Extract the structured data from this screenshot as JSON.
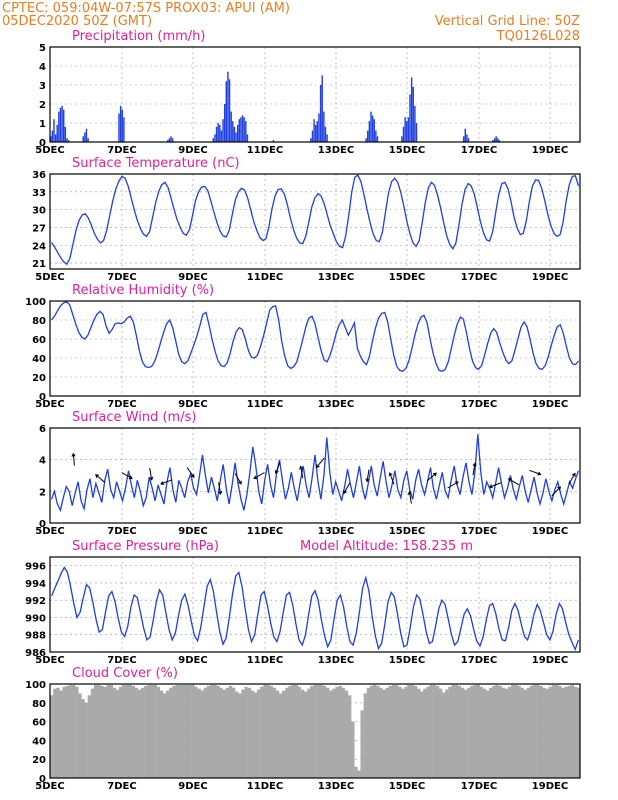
{
  "header": {
    "left_line1": "CPTEC:   059:04W-07:57S   PROX03: APUI (AM)",
    "left_line2": "05DEC2020 50Z (GMT)",
    "right_line1": "Vertical Grid Line: 50Z",
    "right_line2": "TQ0126L028"
  },
  "x_ticks": [
    "5DEC",
    "7DEC",
    "9DEC",
    "11DEC",
    "13DEC",
    "15DEC",
    "17DEC",
    "19DEC"
  ],
  "chart_data": [
    {
      "id": "precip",
      "type": "bar",
      "title": "Precipitation  (mm/h)",
      "ylim": [
        0,
        5
      ],
      "yticks": [
        "0",
        "1",
        "2",
        "3",
        "4",
        "5"
      ],
      "values": [
        0.3,
        0.6,
        1.2,
        0.4,
        0.9,
        1.6,
        1.8,
        1.9,
        1.7,
        0.8,
        0.2,
        0.1,
        0,
        0,
        0,
        0,
        0,
        0,
        0,
        0,
        0.3,
        0.5,
        0.7,
        0.2,
        0,
        0,
        0,
        0,
        0,
        0,
        0,
        0,
        0,
        0,
        0,
        0,
        0,
        0,
        0,
        0,
        0,
        0,
        1.5,
        1.9,
        1.7,
        1.3,
        0,
        0,
        0,
        0,
        0,
        0,
        0,
        0,
        0,
        0,
        0,
        0,
        0,
        0,
        0,
        0,
        0,
        0,
        0,
        0,
        0,
        0,
        0,
        0,
        0,
        0,
        0.1,
        0.2,
        0.3,
        0.2,
        0,
        0,
        0,
        0,
        0,
        0,
        0,
        0,
        0,
        0,
        0,
        0,
        0,
        0,
        0,
        0,
        0,
        0,
        0,
        0,
        0,
        0,
        0,
        0,
        0.2,
        0.4,
        0.8,
        1.0,
        0.9,
        0.6,
        1.2,
        2.0,
        3.2,
        3.7,
        3.3,
        1.6,
        1.1,
        0.8,
        0.5,
        0.9,
        1.2,
        1.3,
        1.4,
        1.3,
        1.1,
        0.4,
        0,
        0,
        0,
        0,
        0,
        0,
        0,
        0,
        0,
        0,
        0,
        0,
        0,
        0,
        0,
        0.1,
        0,
        0,
        0,
        0,
        0,
        0,
        0,
        0,
        0,
        0,
        0,
        0,
        0,
        0,
        0,
        0,
        0,
        0,
        0,
        0,
        0,
        0,
        0.2,
        0.6,
        1.2,
        0.9,
        1.1,
        1.5,
        3.0,
        3.5,
        1.6,
        0.8,
        0.4,
        0,
        0,
        0,
        0,
        0,
        0,
        0,
        0,
        0,
        0,
        0,
        0,
        0,
        0,
        0,
        0,
        0,
        0,
        0,
        0,
        0,
        0,
        0,
        0.2,
        0.6,
        1.1,
        1.6,
        1.4,
        1.2,
        0.6,
        0.3,
        0,
        0,
        0,
        0,
        0,
        0,
        0,
        0,
        0,
        0,
        0,
        0,
        0,
        0,
        0.3,
        0.8,
        1.3,
        1.1,
        1.3,
        2.5,
        3.4,
        2.9,
        1.9,
        1.0,
        0,
        0,
        0,
        0,
        0,
        0,
        0,
        0,
        0,
        0,
        0,
        0,
        0,
        0,
        0,
        0,
        0,
        0,
        0,
        0,
        0,
        0,
        0,
        0,
        0,
        0,
        0,
        0,
        0.3,
        0.7,
        0.4,
        0.2,
        0,
        0,
        0,
        0,
        0,
        0,
        0,
        0,
        0,
        0,
        0,
        0,
        0,
        0,
        0.1,
        0.2,
        0.3,
        0.2,
        0.1,
        0,
        0,
        0,
        0,
        0,
        0,
        0,
        0,
        0,
        0,
        0,
        0,
        0,
        0,
        0,
        0,
        0,
        0,
        0,
        0,
        0,
        0,
        0,
        0,
        0,
        0,
        0,
        0,
        0,
        0,
        0,
        0,
        0,
        0,
        0,
        0,
        0,
        0,
        0,
        0,
        0,
        0,
        0,
        0,
        0,
        0,
        0,
        0,
        0
      ]
    },
    {
      "id": "temp",
      "type": "line",
      "title": "Surface Temperature  (nC)",
      "ylim": [
        20,
        36
      ],
      "yticks": [
        {
          "v": 21,
          "t": "21"
        },
        {
          "v": 24,
          "t": "24"
        },
        {
          "v": 27,
          "t": "27"
        },
        {
          "v": 30,
          "t": "30"
        },
        {
          "v": 33,
          "t": "33"
        },
        {
          "v": 36,
          "t": "36"
        }
      ],
      "values": [
        24.5,
        23.7,
        22.8,
        21.9,
        21.2,
        20.8,
        21.8,
        24.2,
        26.5,
        28.2,
        29.1,
        29.3,
        28.6,
        27.4,
        26.0,
        25.0,
        24.4,
        24.8,
        26.5,
        29.0,
        31.5,
        33.5,
        34.8,
        35.6,
        35.3,
        34.0,
        32.0,
        30.0,
        28.2,
        26.8,
        25.9,
        25.5,
        26.3,
        28.7,
        31.2,
        33.1,
        34.2,
        34.6,
        33.8,
        32.0,
        30.0,
        28.3,
        27.0,
        26.0,
        25.7,
        26.6,
        29.0,
        31.5,
        33.0,
        33.8,
        33.9,
        33.2,
        31.5,
        29.6,
        27.8,
        26.4,
        25.6,
        25.4,
        26.5,
        29.2,
        31.6,
        33.0,
        33.6,
        33.3,
        32.0,
        30.0,
        28.0,
        26.5,
        25.3,
        24.8,
        25.1,
        27.2,
        30.2,
        32.4,
        33.4,
        33.5,
        32.6,
        30.8,
        28.5,
        26.6,
        25.2,
        24.4,
        24.3,
        25.5,
        28.0,
        30.5,
        32.0,
        32.7,
        32.3,
        31.0,
        29.1,
        27.3,
        25.9,
        24.6,
        23.8,
        23.6,
        25.5,
        29.0,
        33.0,
        35.5,
        35.8,
        34.7,
        32.5,
        30.0,
        27.8,
        25.9,
        24.8,
        24.6,
        26.2,
        29.6,
        32.8,
        34.7,
        35.3,
        34.6,
        32.9,
        30.6,
        28.0,
        25.9,
        24.4,
        23.8,
        24.8,
        27.8,
        31.2,
        33.7,
        34.6,
        34.1,
        32.5,
        30.3,
        27.8,
        25.6,
        24.1,
        23.4,
        24.4,
        27.5,
        31.0,
        33.4,
        34.4,
        34.0,
        32.6,
        30.3,
        28.0,
        26.1,
        24.9,
        24.7,
        26.3,
        29.6,
        32.6,
        34.4,
        34.6,
        33.5,
        31.3,
        28.7,
        26.9,
        25.8,
        26.0,
        28.2,
        31.5,
        34.0,
        35.0,
        34.9,
        33.6,
        31.5,
        29.2,
        27.3,
        26.0,
        25.5,
        25.8,
        28.0,
        31.5,
        34.2,
        35.6,
        35.7,
        34.0
      ]
    },
    {
      "id": "rh",
      "type": "line",
      "title": "Relative Humidity  (%)",
      "ylim": [
        0,
        100
      ],
      "yticks": [
        {
          "v": 0,
          "t": "0"
        },
        {
          "v": 20,
          "t": "20"
        },
        {
          "v": 40,
          "t": "40"
        },
        {
          "v": 60,
          "t": "60"
        },
        {
          "v": 80,
          "t": "80"
        },
        {
          "v": 100,
          "t": "100"
        }
      ],
      "values": [
        80,
        84,
        90,
        95,
        98,
        99,
        96,
        86,
        76,
        67,
        62,
        60,
        64,
        72,
        80,
        86,
        89,
        86,
        74,
        66,
        70,
        76,
        77,
        76,
        78,
        82,
        84,
        78,
        64,
        48,
        36,
        31,
        30,
        31,
        36,
        45,
        56,
        67,
        76,
        80,
        72,
        58,
        44,
        36,
        34,
        37,
        45,
        54,
        63,
        74,
        86,
        88,
        75,
        60,
        47,
        37,
        32,
        31,
        35,
        45,
        58,
        68,
        72,
        70,
        60,
        48,
        41,
        40,
        43,
        52,
        63,
        76,
        90,
        94,
        95,
        80,
        58,
        42,
        32,
        29,
        31,
        36,
        48,
        60,
        73,
        82,
        84,
        76,
        62,
        48,
        38,
        36,
        43,
        54,
        66,
        75,
        80,
        72,
        64,
        70,
        77,
        50,
        42,
        36,
        33,
        42,
        58,
        72,
        82,
        87,
        88,
        78,
        60,
        43,
        31,
        27,
        26,
        29,
        37,
        50,
        64,
        76,
        83,
        85,
        77,
        60,
        45,
        34,
        27,
        26,
        28,
        36,
        50,
        64,
        76,
        83,
        81,
        67,
        50,
        37,
        30,
        28,
        32,
        43,
        55,
        66,
        71,
        67,
        56,
        46,
        38,
        34,
        37,
        48,
        60,
        72,
        78,
        73,
        60,
        45,
        34,
        29,
        28,
        32,
        41,
        53,
        64,
        73,
        75,
        66,
        52,
        40,
        34,
        33,
        37
      ]
    },
    {
      "id": "wind",
      "type": "line",
      "title": "Surface Wind  (m/s)",
      "ylim": [
        0,
        6
      ],
      "yticks": [
        {
          "v": 0,
          "t": "0"
        },
        {
          "v": 2,
          "t": "2"
        },
        {
          "v": 4,
          "t": "4"
        },
        {
          "v": 6,
          "t": "6"
        }
      ],
      "values": [
        1.5,
        2.0,
        1.2,
        0.8,
        1.6,
        2.3,
        2.0,
        1.1,
        1.9,
        2.6,
        1.4,
        0.9,
        2.1,
        2.8,
        1.6,
        2.5,
        1.9,
        1.3,
        2.7,
        3.4,
        2.1,
        1.6,
        2.6,
        2.0,
        1.4,
        2.2,
        3.3,
        2.4,
        1.6,
        2.7,
        2.0,
        1.1,
        1.6,
        2.9,
        2.2,
        1.4,
        2.4,
        1.8,
        1.2,
        2.6,
        3.5,
        2.1,
        1.3,
        2.7,
        2.2,
        1.6,
        2.6,
        3.1,
        2.2,
        1.8,
        3.0,
        4.3,
        3.0,
        1.9,
        2.9,
        2.2,
        1.4,
        2.7,
        3.7,
        2.2,
        1.2,
        2.4,
        3.8,
        2.5,
        1.5,
        0.8,
        1.8,
        3.2,
        4.8,
        3.6,
        2.0,
        1.2,
        2.7,
        3.7,
        2.4,
        1.6,
        3.1,
        4.0,
        2.7,
        1.5,
        2.2,
        3.2,
        2.2,
        1.4,
        2.6,
        3.6,
        2.4,
        1.6,
        2.8,
        4.3,
        2.6,
        1.5,
        3.0,
        5.4,
        3.2,
        1.8,
        2.6,
        2.0,
        1.4,
        2.3,
        3.4,
        2.4,
        1.6,
        2.6,
        3.6,
        2.2,
        1.5,
        2.5,
        3.6,
        2.4,
        1.7,
        2.8,
        3.9,
        2.6,
        1.6,
        2.4,
        3.3,
        2.1,
        1.6,
        2.7,
        3.3,
        2.1,
        1.5,
        2.7,
        3.4,
        2.4,
        1.8,
        2.6,
        3.5,
        2.2,
        1.5,
        2.4,
        3.2,
        2.0,
        1.6,
        2.7,
        3.6,
        2.4,
        1.8,
        2.9,
        3.8,
        2.6,
        1.8,
        3.2,
        5.6,
        3.2,
        1.8,
        2.6,
        2.2,
        1.6,
        2.5,
        3.5,
        2.5,
        1.6,
        2.2,
        3.0,
        2.1,
        1.5,
        2.3,
        3.0,
        2.0,
        1.3,
        2.1,
        2.9,
        1.9,
        1.2,
        1.9,
        2.8,
        2.0,
        1.4,
        2.1,
        2.6,
        1.8,
        1.2,
        1.9,
        2.6,
        2.2,
        2.8,
        3.3
      ]
    },
    {
      "id": "pres",
      "type": "line",
      "title": "Surface Pressure  (hPa)",
      "annotation": "Model Altitude: 158.235  m",
      "ylim": [
        986,
        997
      ],
      "yticks": [
        {
          "v": 986,
          "t": "986"
        },
        {
          "v": 988,
          "t": "988"
        },
        {
          "v": 990,
          "t": "990"
        },
        {
          "v": 992,
          "t": "992"
        },
        {
          "v": 994,
          "t": "994"
        },
        {
          "v": 996,
          "t": "996"
        }
      ],
      "values": [
        992.5,
        993.4,
        994.2,
        995.1,
        995.8,
        995.2,
        993.6,
        991.6,
        990.0,
        990.6,
        992.3,
        993.8,
        993.4,
        991.8,
        989.8,
        988.3,
        988.6,
        990.6,
        992.5,
        993.0,
        991.8,
        989.9,
        988.3,
        987.8,
        989.0,
        991.2,
        992.6,
        992.3,
        990.6,
        988.8,
        987.4,
        987.7,
        989.6,
        991.8,
        993.2,
        992.6,
        990.6,
        988.6,
        987.4,
        988.2,
        990.2,
        992.0,
        992.7,
        991.4,
        989.6,
        987.9,
        987.3,
        988.8,
        991.2,
        993.6,
        994.4,
        993.0,
        990.6,
        988.3,
        986.9,
        987.6,
        990.0,
        992.7,
        994.8,
        995.2,
        993.6,
        991.0,
        988.6,
        987.2,
        988.0,
        990.4,
        992.6,
        993.0,
        991.4,
        989.4,
        987.8,
        987.2,
        988.4,
        990.6,
        992.6,
        992.9,
        991.4,
        989.2,
        987.4,
        986.8,
        988.0,
        990.4,
        992.5,
        993.1,
        992.0,
        989.8,
        987.9,
        986.6,
        987.4,
        989.8,
        992.0,
        992.6,
        991.2,
        989.0,
        987.2,
        986.8,
        988.2,
        990.6,
        993.4,
        994.6,
        993.0,
        990.2,
        987.9,
        986.4,
        987.0,
        989.2,
        991.8,
        992.9,
        992.4,
        990.4,
        988.2,
        986.6,
        986.8,
        988.8,
        991.2,
        992.6,
        992.2,
        990.4,
        988.4,
        987.0,
        987.2,
        989.0,
        991.0,
        992.0,
        991.5,
        989.8,
        988.0,
        986.8,
        987.2,
        988.8,
        990.4,
        991.0,
        990.2,
        988.6,
        987.2,
        986.7,
        987.8,
        989.8,
        991.4,
        991.6,
        990.4,
        988.6,
        987.4,
        987.3,
        988.8,
        990.8,
        991.6,
        990.8,
        989.2,
        987.8,
        987.4,
        988.6,
        990.4,
        991.5,
        990.8,
        989.4,
        988.0,
        987.4,
        988.4,
        990.4,
        991.6,
        991.0,
        989.4,
        988.0,
        987.1,
        986.3,
        987.4
      ]
    },
    {
      "id": "cloud",
      "type": "area",
      "title": "Cloud Cover  (%)",
      "ylim": [
        0,
        100
      ],
      "yticks": [
        {
          "v": 0,
          "t": "0"
        },
        {
          "v": 20,
          "t": "20"
        },
        {
          "v": 40,
          "t": "40"
        },
        {
          "v": 60,
          "t": "60"
        },
        {
          "v": 80,
          "t": "80"
        },
        {
          "v": 100,
          "t": "100"
        }
      ],
      "values": [
        88,
        95,
        96,
        93,
        97,
        98,
        99,
        99,
        97,
        90,
        84,
        80,
        88,
        95,
        99,
        99,
        98,
        97,
        99,
        99,
        96,
        94,
        97,
        99,
        99,
        99,
        98,
        96,
        94,
        96,
        98,
        99,
        99,
        99,
        97,
        93,
        90,
        93,
        96,
        98,
        99,
        99,
        99,
        99,
        99,
        99,
        97,
        95,
        93,
        96,
        98,
        99,
        99,
        98,
        96,
        94,
        96,
        98,
        96,
        92,
        90,
        94,
        97,
        96,
        93,
        91,
        94,
        97,
        99,
        99,
        98,
        96,
        93,
        90,
        93,
        96,
        98,
        99,
        99,
        97,
        94,
        92,
        95,
        98,
        99,
        99,
        99,
        98,
        96,
        93,
        95,
        97,
        98,
        96,
        93,
        88,
        60,
        12,
        8,
        72,
        90,
        96,
        98,
        99,
        98,
        96,
        94,
        96,
        98,
        99,
        99,
        97,
        95,
        97,
        99,
        99,
        98,
        95,
        92,
        95,
        97,
        99,
        99,
        98,
        95,
        91,
        94,
        97,
        99,
        99,
        98,
        96,
        94,
        96,
        98,
        99,
        99,
        97,
        95,
        93,
        96,
        98,
        99,
        98,
        96,
        95,
        97,
        99,
        99,
        98,
        96,
        94,
        96,
        98,
        99,
        99,
        98,
        96,
        95,
        97,
        99,
        99,
        98,
        96,
        97,
        98,
        99,
        97,
        96
      ]
    }
  ],
  "wind_arrows": [
    {
      "x": 0.045,
      "v": 4.0,
      "dir": 95
    },
    {
      "x": 0.095,
      "v": 2.8,
      "dir": 140
    },
    {
      "x": 0.145,
      "v": 3.0,
      "dir": 330
    },
    {
      "x": 0.19,
      "v": 3.1,
      "dir": 280
    },
    {
      "x": 0.22,
      "v": 2.6,
      "dir": 200
    },
    {
      "x": 0.265,
      "v": 3.2,
      "dir": 305
    },
    {
      "x": 0.32,
      "v": 2.2,
      "dir": 280
    },
    {
      "x": 0.355,
      "v": 2.8,
      "dir": 300
    },
    {
      "x": 0.395,
      "v": 3.0,
      "dir": 210
    },
    {
      "x": 0.43,
      "v": 3.5,
      "dir": 250
    },
    {
      "x": 0.475,
      "v": 3.2,
      "dir": 100
    },
    {
      "x": 0.51,
      "v": 3.8,
      "dir": 230
    },
    {
      "x": 0.56,
      "v": 2.2,
      "dir": 240
    },
    {
      "x": 0.6,
      "v": 3.0,
      "dir": 260
    },
    {
      "x": 0.645,
      "v": 2.8,
      "dir": 110
    },
    {
      "x": 0.68,
      "v": 1.6,
      "dir": 100
    },
    {
      "x": 0.72,
      "v": 2.9,
      "dir": 40
    },
    {
      "x": 0.76,
      "v": 2.4,
      "dir": 30
    },
    {
      "x": 0.8,
      "v": 3.4,
      "dir": 80
    },
    {
      "x": 0.84,
      "v": 2.4,
      "dir": 200
    },
    {
      "x": 0.875,
      "v": 2.6,
      "dir": 150
    },
    {
      "x": 0.915,
      "v": 3.2,
      "dir": 340
    },
    {
      "x": 0.955,
      "v": 2.0,
      "dir": 45
    },
    {
      "x": 0.985,
      "v": 2.8,
      "dir": 60
    }
  ]
}
